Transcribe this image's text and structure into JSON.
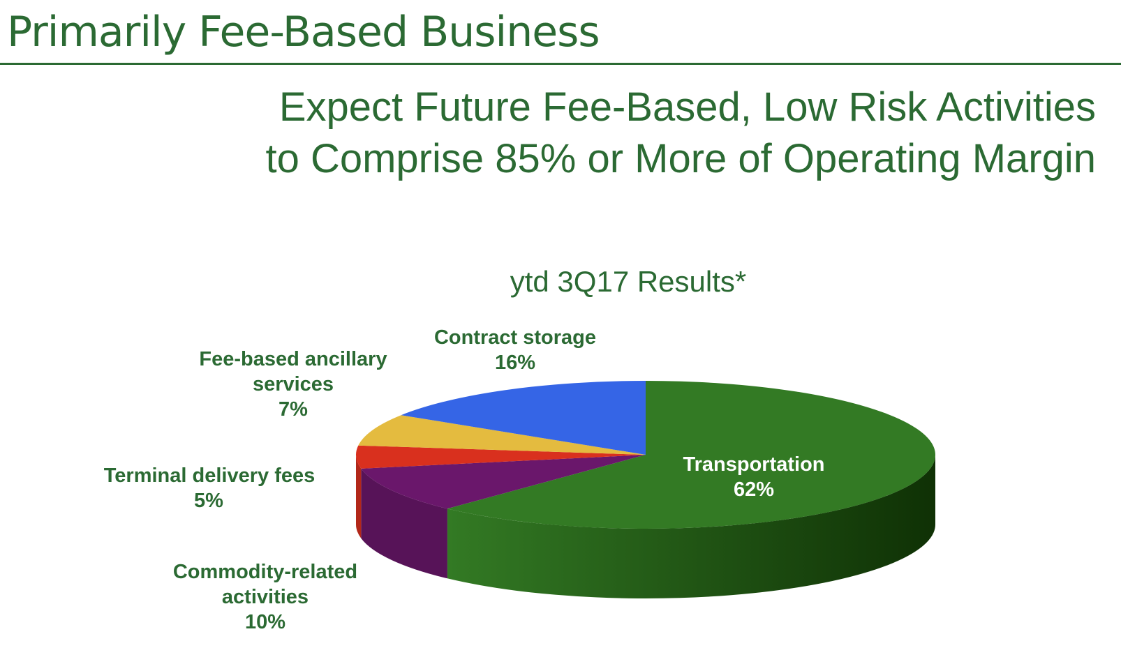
{
  "slide": {
    "title": "Primarily Fee-Based Business",
    "headline_line1": "Expect Future Fee-Based, Low Risk Activities",
    "headline_line2": "to Comprise 85% or More of Operating Margin"
  },
  "chart_data": {
    "type": "pie",
    "title": "ytd 3Q17 Results*",
    "slices": [
      {
        "label_lines": [
          "Transportation"
        ],
        "value_text": "62%",
        "value": 62,
        "color": "#337a24"
      },
      {
        "label_lines": [
          "Commodity-related",
          "activities"
        ],
        "value_text": "10%",
        "value": 10,
        "color": "#6a176b"
      },
      {
        "label_lines": [
          "Terminal delivery fees"
        ],
        "value_text": "5%",
        "value": 5,
        "color": "#d9301e"
      },
      {
        "label_lines": [
          "Fee-based ancillary",
          "services"
        ],
        "value_text": "7%",
        "value": 7,
        "color": "#e4bb3f"
      },
      {
        "label_lines": [
          "Contract storage"
        ],
        "value_text": "16%",
        "value": 16,
        "color": "#3565e6"
      }
    ]
  }
}
